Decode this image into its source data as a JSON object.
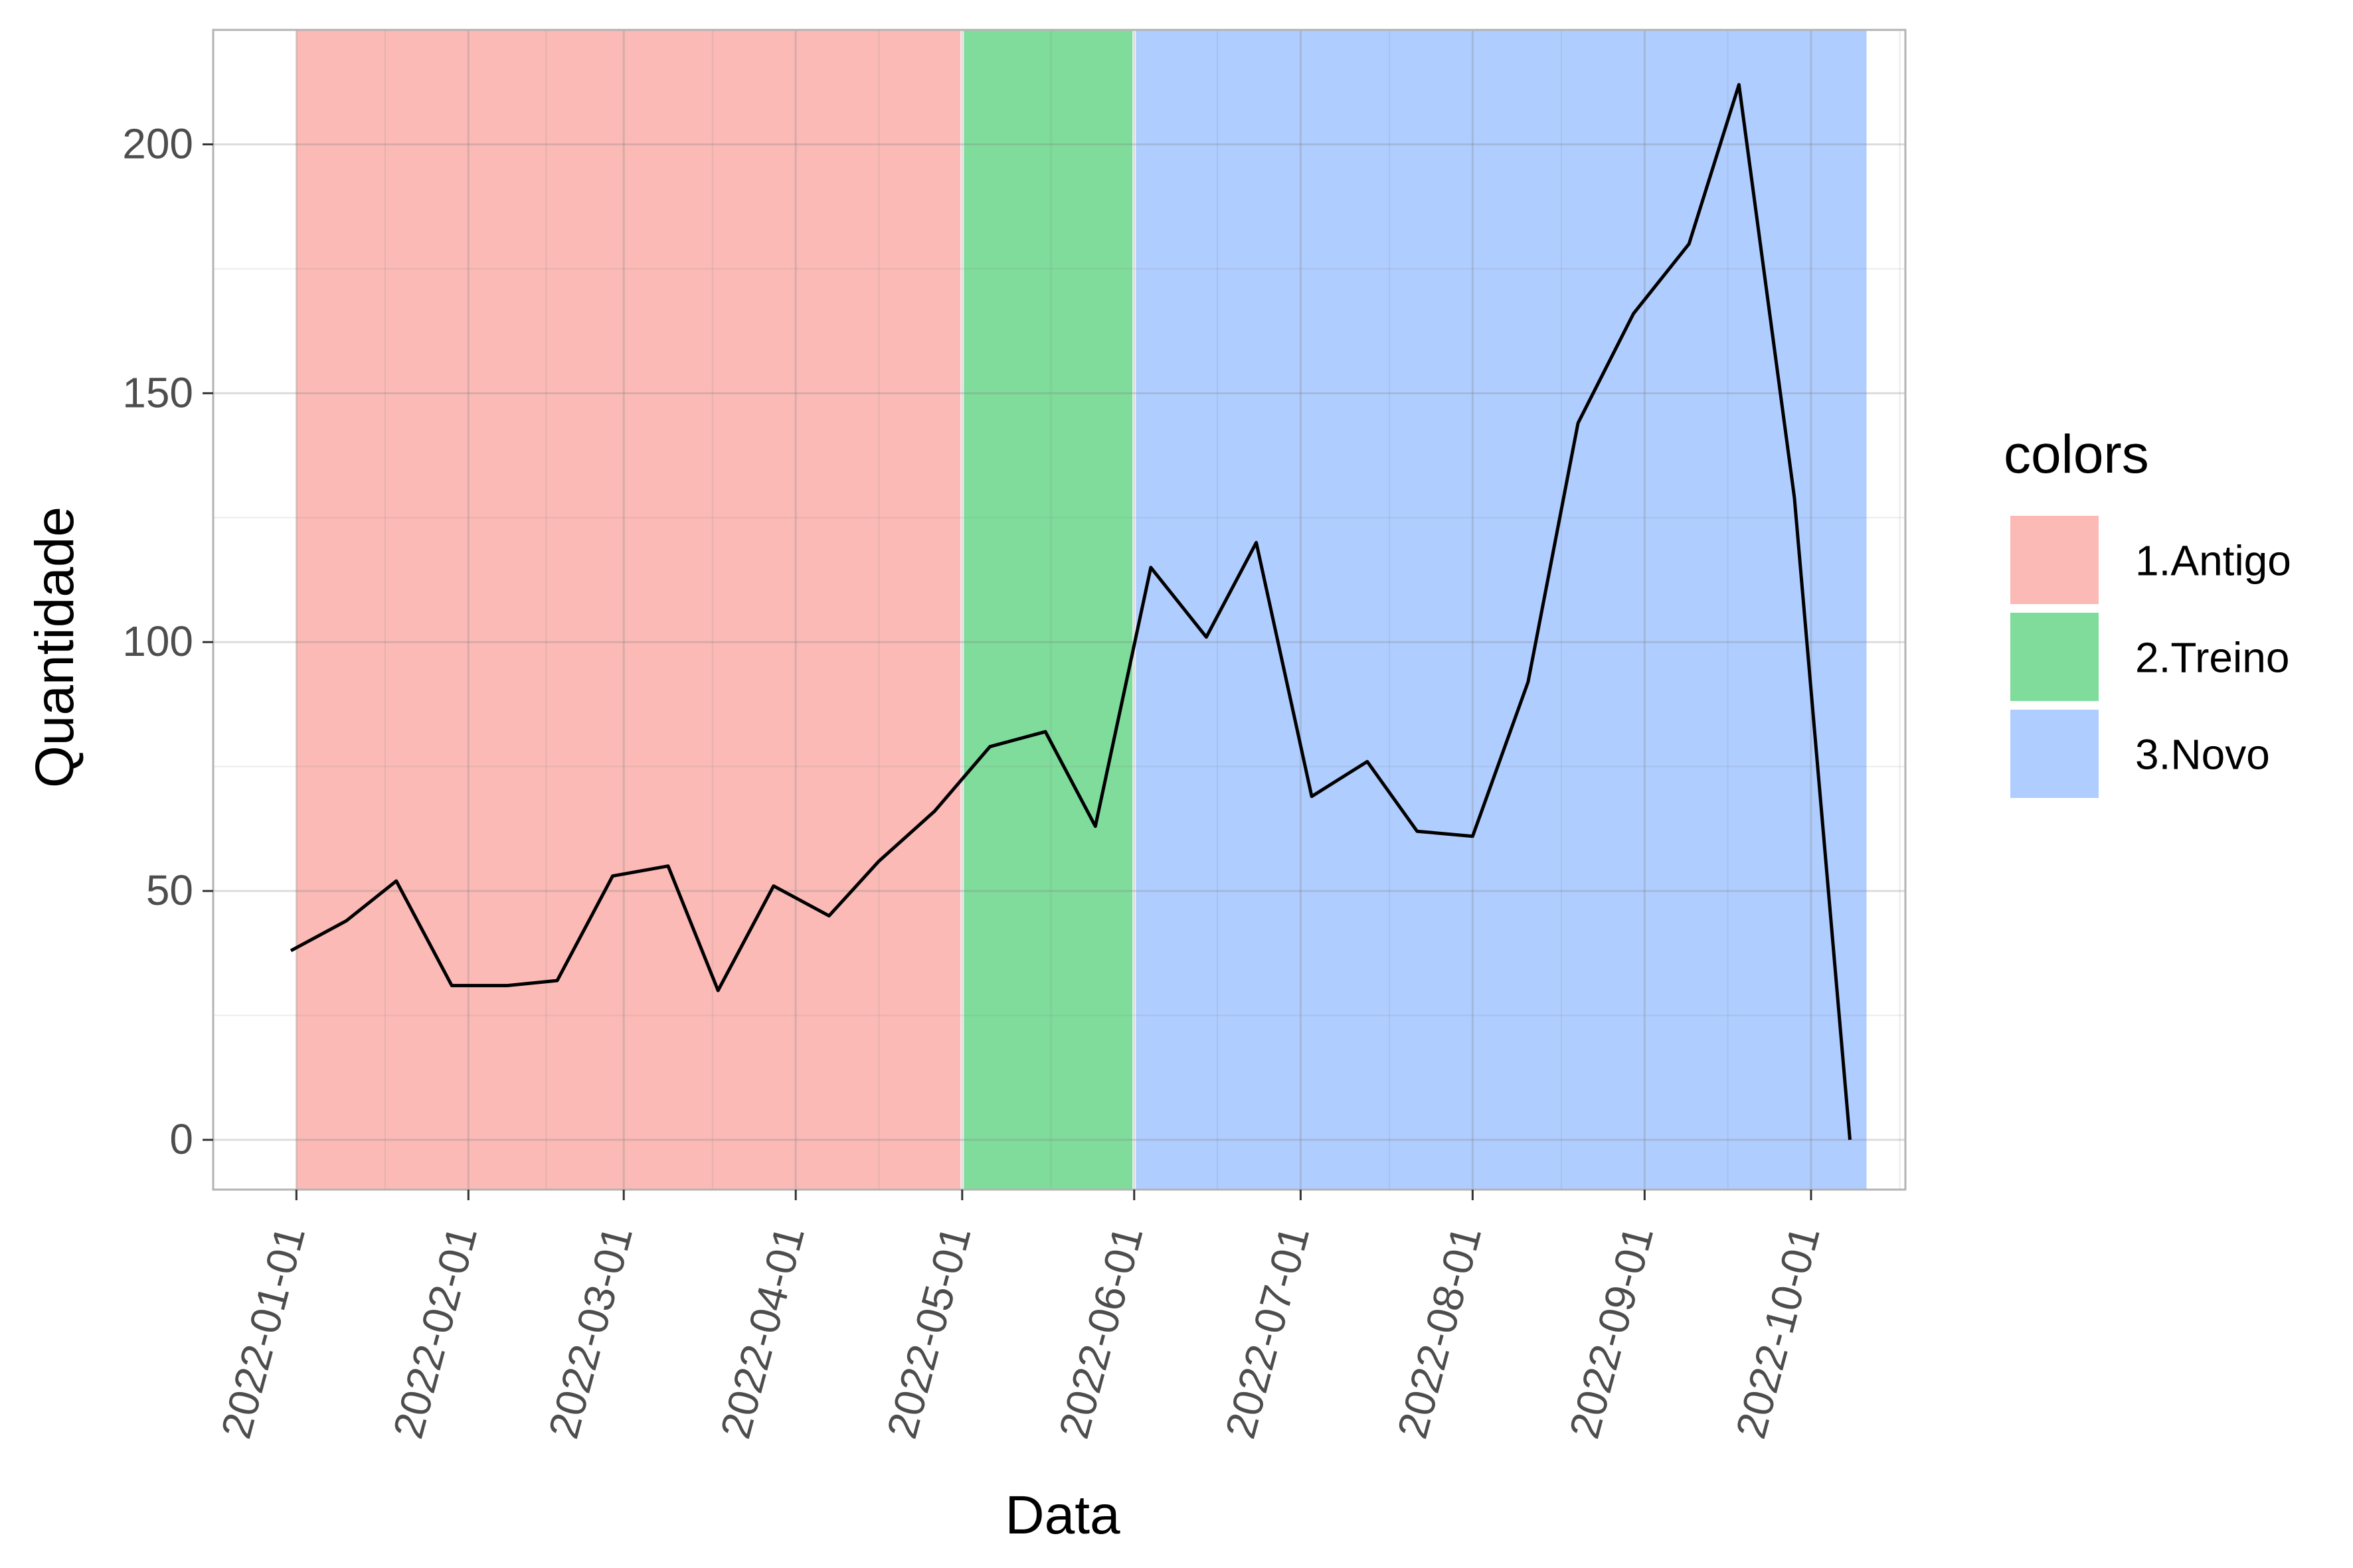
{
  "chart_data": {
    "type": "line",
    "xlabel": "Data",
    "ylabel": "Quantidade",
    "x_tick_labels": [
      "2022-01-01",
      "2022-02-01",
      "2022-03-01",
      "2022-04-01",
      "2022-05-01",
      "2022-06-01",
      "2022-07-01",
      "2022-08-01",
      "2022-09-01",
      "2022-10-01"
    ],
    "y_tick_labels": [
      "0",
      "50",
      "100",
      "150",
      "200"
    ],
    "y_ticks": [
      0,
      50,
      100,
      150,
      200
    ],
    "xlim": [
      "2021-12-17",
      "2022-10-18"
    ],
    "ylim": [
      -10,
      223
    ],
    "grid": true,
    "legend": {
      "title": "colors",
      "position": "right",
      "items": [
        {
          "label": "1.Antigo",
          "color": "#F8766D"
        },
        {
          "label": "2.Treino",
          "color": "#00BA38"
        },
        {
          "label": "3.Novo",
          "color": "#619CFF"
        }
      ]
    },
    "bands": [
      {
        "label": "1.Antigo",
        "start": "2022-01-01",
        "end": "2022-04-30",
        "color": "#F8766D",
        "alpha": 0.5
      },
      {
        "label": "2.Treino",
        "start": "2022-05-01",
        "end": "2022-05-31",
        "color": "#00BA38",
        "alpha": 0.5
      },
      {
        "label": "3.Novo",
        "start": "2022-06-01",
        "end": "2022-10-10",
        "color": "#619CFF",
        "alpha": 0.5
      }
    ],
    "series": [
      {
        "color": "#000000",
        "points": [
          {
            "x": "2021-12-31",
            "y": 38
          },
          {
            "x": "2022-01-10",
            "y": 44
          },
          {
            "x": "2022-01-19",
            "y": 52
          },
          {
            "x": "2022-01-29",
            "y": 31
          },
          {
            "x": "2022-02-08",
            "y": 31
          },
          {
            "x": "2022-02-17",
            "y": 32
          },
          {
            "x": "2022-02-27",
            "y": 53
          },
          {
            "x": "2022-03-09",
            "y": 55
          },
          {
            "x": "2022-03-18",
            "y": 30
          },
          {
            "x": "2022-03-28",
            "y": 51
          },
          {
            "x": "2022-04-07",
            "y": 45
          },
          {
            "x": "2022-04-16",
            "y": 56
          },
          {
            "x": "2022-04-26",
            "y": 66
          },
          {
            "x": "2022-05-06",
            "y": 79
          },
          {
            "x": "2022-05-16",
            "y": 82
          },
          {
            "x": "2022-05-25",
            "y": 63
          },
          {
            "x": "2022-06-04",
            "y": 115
          },
          {
            "x": "2022-06-14",
            "y": 101
          },
          {
            "x": "2022-06-23",
            "y": 120
          },
          {
            "x": "2022-07-03",
            "y": 69
          },
          {
            "x": "2022-07-13",
            "y": 76
          },
          {
            "x": "2022-07-22",
            "y": 62
          },
          {
            "x": "2022-08-01",
            "y": 61
          },
          {
            "x": "2022-08-11",
            "y": 92
          },
          {
            "x": "2022-08-20",
            "y": 144
          },
          {
            "x": "2022-08-30",
            "y": 166
          },
          {
            "x": "2022-09-09",
            "y": 180
          },
          {
            "x": "2022-09-18",
            "y": 212
          },
          {
            "x": "2022-09-28",
            "y": 129
          },
          {
            "x": "2022-10-08",
            "y": 0
          }
        ]
      }
    ]
  }
}
